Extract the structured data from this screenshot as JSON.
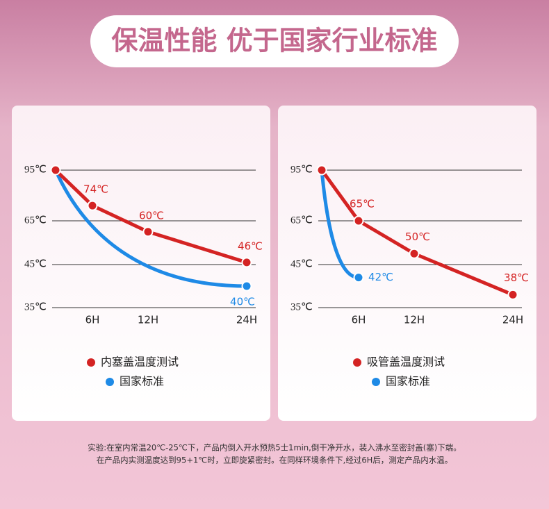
{
  "header": {
    "title": "保温性能 优于国家行业标准"
  },
  "chart_data": [
    {
      "type": "line",
      "series": [
        {
          "name": "内塞盖温度测试",
          "color": "#d42323",
          "x": [
            0,
            6,
            12,
            24
          ],
          "values": [
            95,
            74,
            60,
            46
          ],
          "value_labels": [
            null,
            "74℃",
            "60℃",
            "46℃"
          ]
        },
        {
          "name": "国家标准",
          "color": "#1e8ae6",
          "x": [
            0,
            24
          ],
          "values": [
            95,
            40
          ],
          "value_labels": [
            null,
            "40℃"
          ]
        }
      ],
      "xlim": [
        0,
        24
      ],
      "xticks": [
        {
          "value": 6,
          "label": "6H"
        },
        {
          "value": 12,
          "label": "12H"
        },
        {
          "value": 24,
          "label": "24H"
        }
      ],
      "ylim": [
        35,
        95
      ],
      "yticks": [
        {
          "value": 95,
          "label": "95℃"
        },
        {
          "value": 65,
          "label": "65℃"
        },
        {
          "value": 45,
          "label": "45℃"
        },
        {
          "value": 35,
          "label": "35℃"
        }
      ],
      "grid": true
    },
    {
      "type": "line",
      "series": [
        {
          "name": "吸管盖温度测试",
          "color": "#d42323",
          "x": [
            0,
            6,
            12,
            24
          ],
          "values": [
            95,
            65,
            50,
            38
          ],
          "value_labels": [
            null,
            "65℃",
            "50℃",
            "38℃"
          ]
        },
        {
          "name": "国家标准",
          "color": "#1e8ae6",
          "x": [
            0,
            6
          ],
          "values": [
            95,
            42
          ],
          "value_labels": [
            null,
            "42℃"
          ]
        }
      ],
      "xlim": [
        0,
        24
      ],
      "xticks": [
        {
          "value": 6,
          "label": "6H"
        },
        {
          "value": 12,
          "label": "12H"
        },
        {
          "value": 24,
          "label": "24H"
        }
      ],
      "ylim": [
        35,
        95
      ],
      "yticks": [
        {
          "value": 95,
          "label": "95℃"
        },
        {
          "value": 65,
          "label": "65℃"
        },
        {
          "value": 45,
          "label": "45℃"
        },
        {
          "value": 35,
          "label": "35℃"
        }
      ],
      "grid": true
    }
  ],
  "footnote": [
    "实验:在室内常温20℃-25℃下，产品内倒入开水预热5士1min,倒干净开水，装入沸水至密封盖(塞)下端。",
    "在产品内实测温度达到95+1℃时，立即旋紧密封。在同样环境条件下,经过6H后，测定产品内水温。"
  ]
}
